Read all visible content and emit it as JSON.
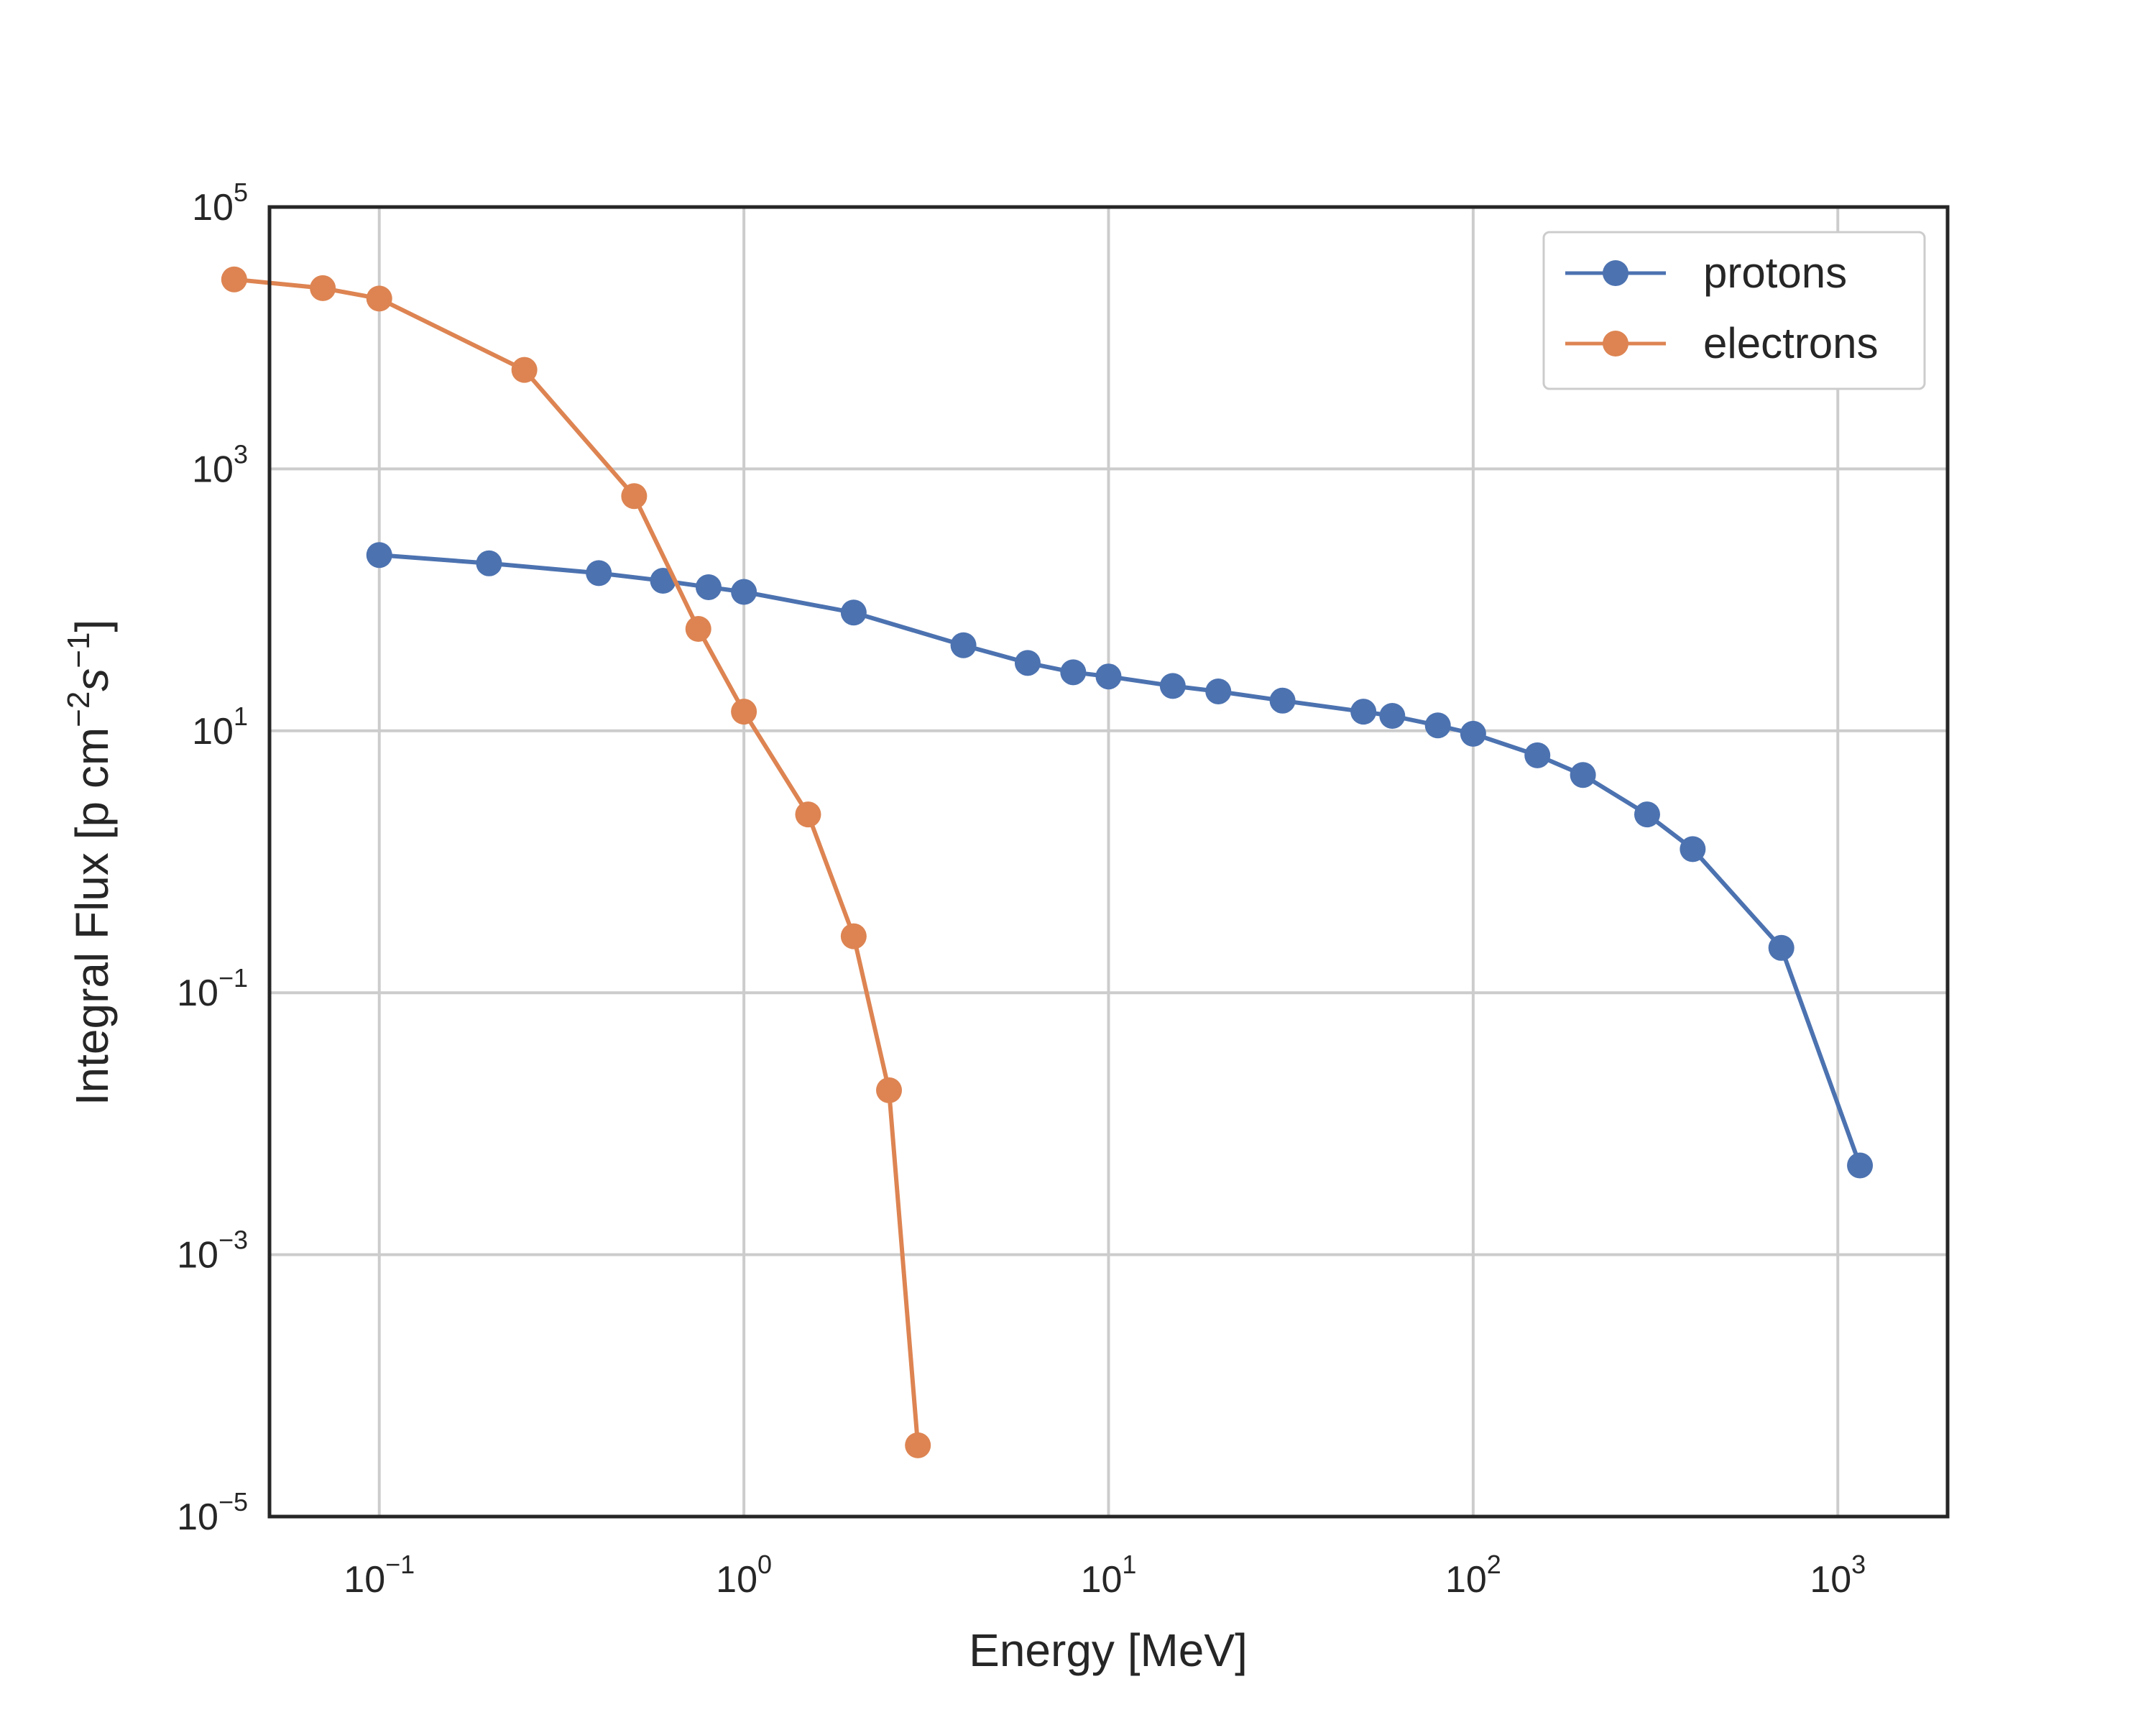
{
  "chart_data": {
    "type": "line",
    "xlabel": "Energy [MeV]",
    "ylabel_prefix": "Integral Flux [p cm",
    "ylabel_exp1": "−2",
    "ylabel_mid": "s",
    "ylabel_exp2": "−1",
    "ylabel_suffix": "]",
    "xscale": "log",
    "yscale": "log",
    "xlim": [
      0.05,
      2000
    ],
    "ylim": [
      1e-05,
      100000
    ],
    "grid": true,
    "legend_position": "top-right",
    "x_ticks": [
      {
        "value": 0.1,
        "base": "10",
        "exp": "−1"
      },
      {
        "value": 1,
        "base": "10",
        "exp": "0"
      },
      {
        "value": 10,
        "base": "10",
        "exp": "1"
      },
      {
        "value": 100,
        "base": "10",
        "exp": "2"
      },
      {
        "value": 1000,
        "base": "10",
        "exp": "3"
      }
    ],
    "y_ticks": [
      {
        "value": 1e-05,
        "base": "10",
        "exp": "−5"
      },
      {
        "value": 0.001,
        "base": "10",
        "exp": "−3"
      },
      {
        "value": 0.1,
        "base": "10",
        "exp": "−1"
      },
      {
        "value": 10,
        "base": "10",
        "exp": "1"
      },
      {
        "value": 1000,
        "base": "10",
        "exp": "3"
      },
      {
        "value": 100000,
        "base": "10",
        "exp": "5"
      }
    ],
    "series": [
      {
        "name": "protons",
        "color": "#4c72b0",
        "x": [
          0.1,
          0.2,
          0.4,
          0.6,
          0.8,
          1,
          2,
          4,
          6,
          8,
          10,
          15,
          20,
          30,
          50,
          60,
          80,
          100,
          150,
          200,
          300,
          400,
          700,
          1150
        ],
        "y": [
          220,
          190,
          160,
          140,
          125,
          115,
          80,
          45,
          33,
          28,
          26,
          22,
          20,
          17,
          14,
          13,
          11,
          9.5,
          6.5,
          4.6,
          2.3,
          1.25,
          0.22,
          0.0048
        ]
      },
      {
        "name": "electrons",
        "color": "#dd8452",
        "x": [
          0.04,
          0.07,
          0.1,
          0.25,
          0.5,
          0.75,
          1,
          1.5,
          2,
          2.5,
          3
        ],
        "y": [
          28000,
          24000,
          20000,
          5700,
          620,
          60,
          14,
          2.3,
          0.27,
          0.018,
          3.5e-05
        ]
      }
    ]
  }
}
